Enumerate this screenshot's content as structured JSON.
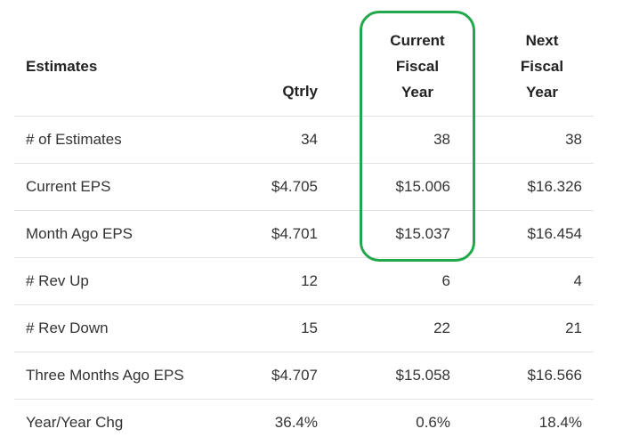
{
  "headers": {
    "label": "Estimates",
    "qtrly": "Qtrly",
    "current_fiscal_year": "Current\nFiscal\nYear",
    "next_fiscal_year": "Next\nFiscal\nYear"
  },
  "rows": [
    {
      "label": "# of Estimates",
      "qtrly": "34",
      "current_fy": "38",
      "next_fy": "38"
    },
    {
      "label": "Current EPS",
      "qtrly": "$4.705",
      "current_fy": "$15.006",
      "next_fy": "$16.326"
    },
    {
      "label": "Month Ago EPS",
      "qtrly": "$4.701",
      "current_fy": "$15.037",
      "next_fy": "$16.454"
    },
    {
      "label": "# Rev Up",
      "qtrly": "12",
      "current_fy": "6",
      "next_fy": "4"
    },
    {
      "label": "# Rev Down",
      "qtrly": "15",
      "current_fy": "22",
      "next_fy": "21"
    },
    {
      "label": "Three Months Ago EPS",
      "qtrly": "$4.707",
      "current_fy": "$15.058",
      "next_fy": "$16.566"
    },
    {
      "label": "Year/Year Chg",
      "qtrly": "36.4%",
      "current_fy": "0.6%",
      "next_fy": "18.4%"
    }
  ],
  "highlight": {
    "color": "#21a84a"
  }
}
